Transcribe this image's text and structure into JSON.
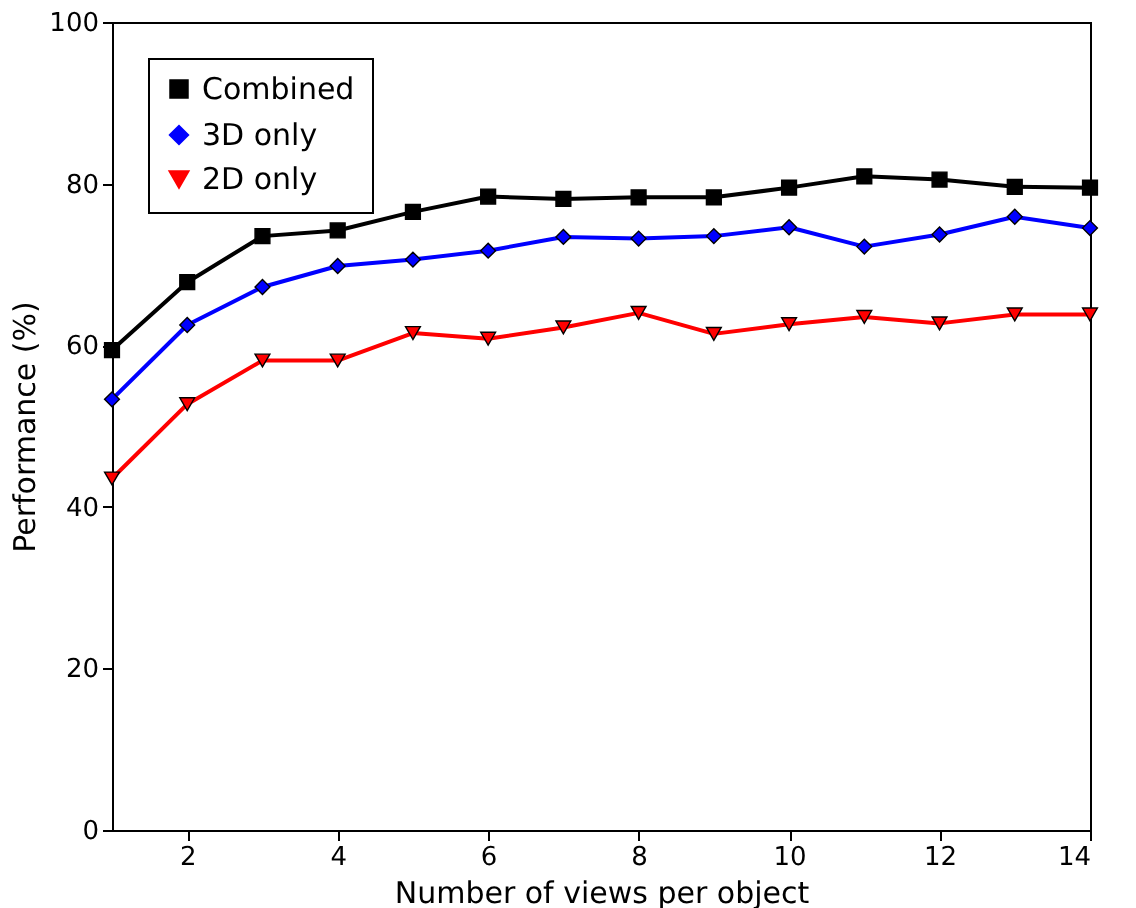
{
  "chart_data": {
    "type": "line",
    "xlabel": "Number of views per object",
    "ylabel": "Performance (%)",
    "x": [
      1,
      2,
      3,
      4,
      5,
      6,
      7,
      8,
      9,
      10,
      11,
      12,
      13,
      14
    ],
    "xlim": [
      1,
      14
    ],
    "xticks": [
      2,
      4,
      6,
      8,
      10,
      12,
      14
    ],
    "ylim": [
      0,
      100
    ],
    "yticks": [
      0,
      20,
      40,
      60,
      80,
      100
    ],
    "grid": false,
    "legend": "top left",
    "line_style": "solid",
    "series": [
      {
        "name": "Combined",
        "color": "#000000",
        "marker": "square",
        "values": [
          59.4,
          67.8,
          73.5,
          74.2,
          76.5,
          78.4,
          78.1,
          78.3,
          78.3,
          79.5,
          80.9,
          80.5,
          79.6,
          79.5
        ]
      },
      {
        "name": "3D only",
        "color": "#0000ff",
        "marker": "diamond",
        "values": [
          53.3,
          62.5,
          67.2,
          69.8,
          70.6,
          71.7,
          73.4,
          73.2,
          73.5,
          74.6,
          72.2,
          73.7,
          75.9,
          74.5
        ]
      },
      {
        "name": "2D only",
        "color": "#ff0000",
        "marker": "triangle-down",
        "values": [
          43.5,
          52.7,
          58.1,
          58.1,
          61.5,
          60.8,
          62.2,
          64.0,
          61.4,
          62.6,
          63.5,
          62.7,
          63.8,
          63.8
        ]
      }
    ]
  }
}
